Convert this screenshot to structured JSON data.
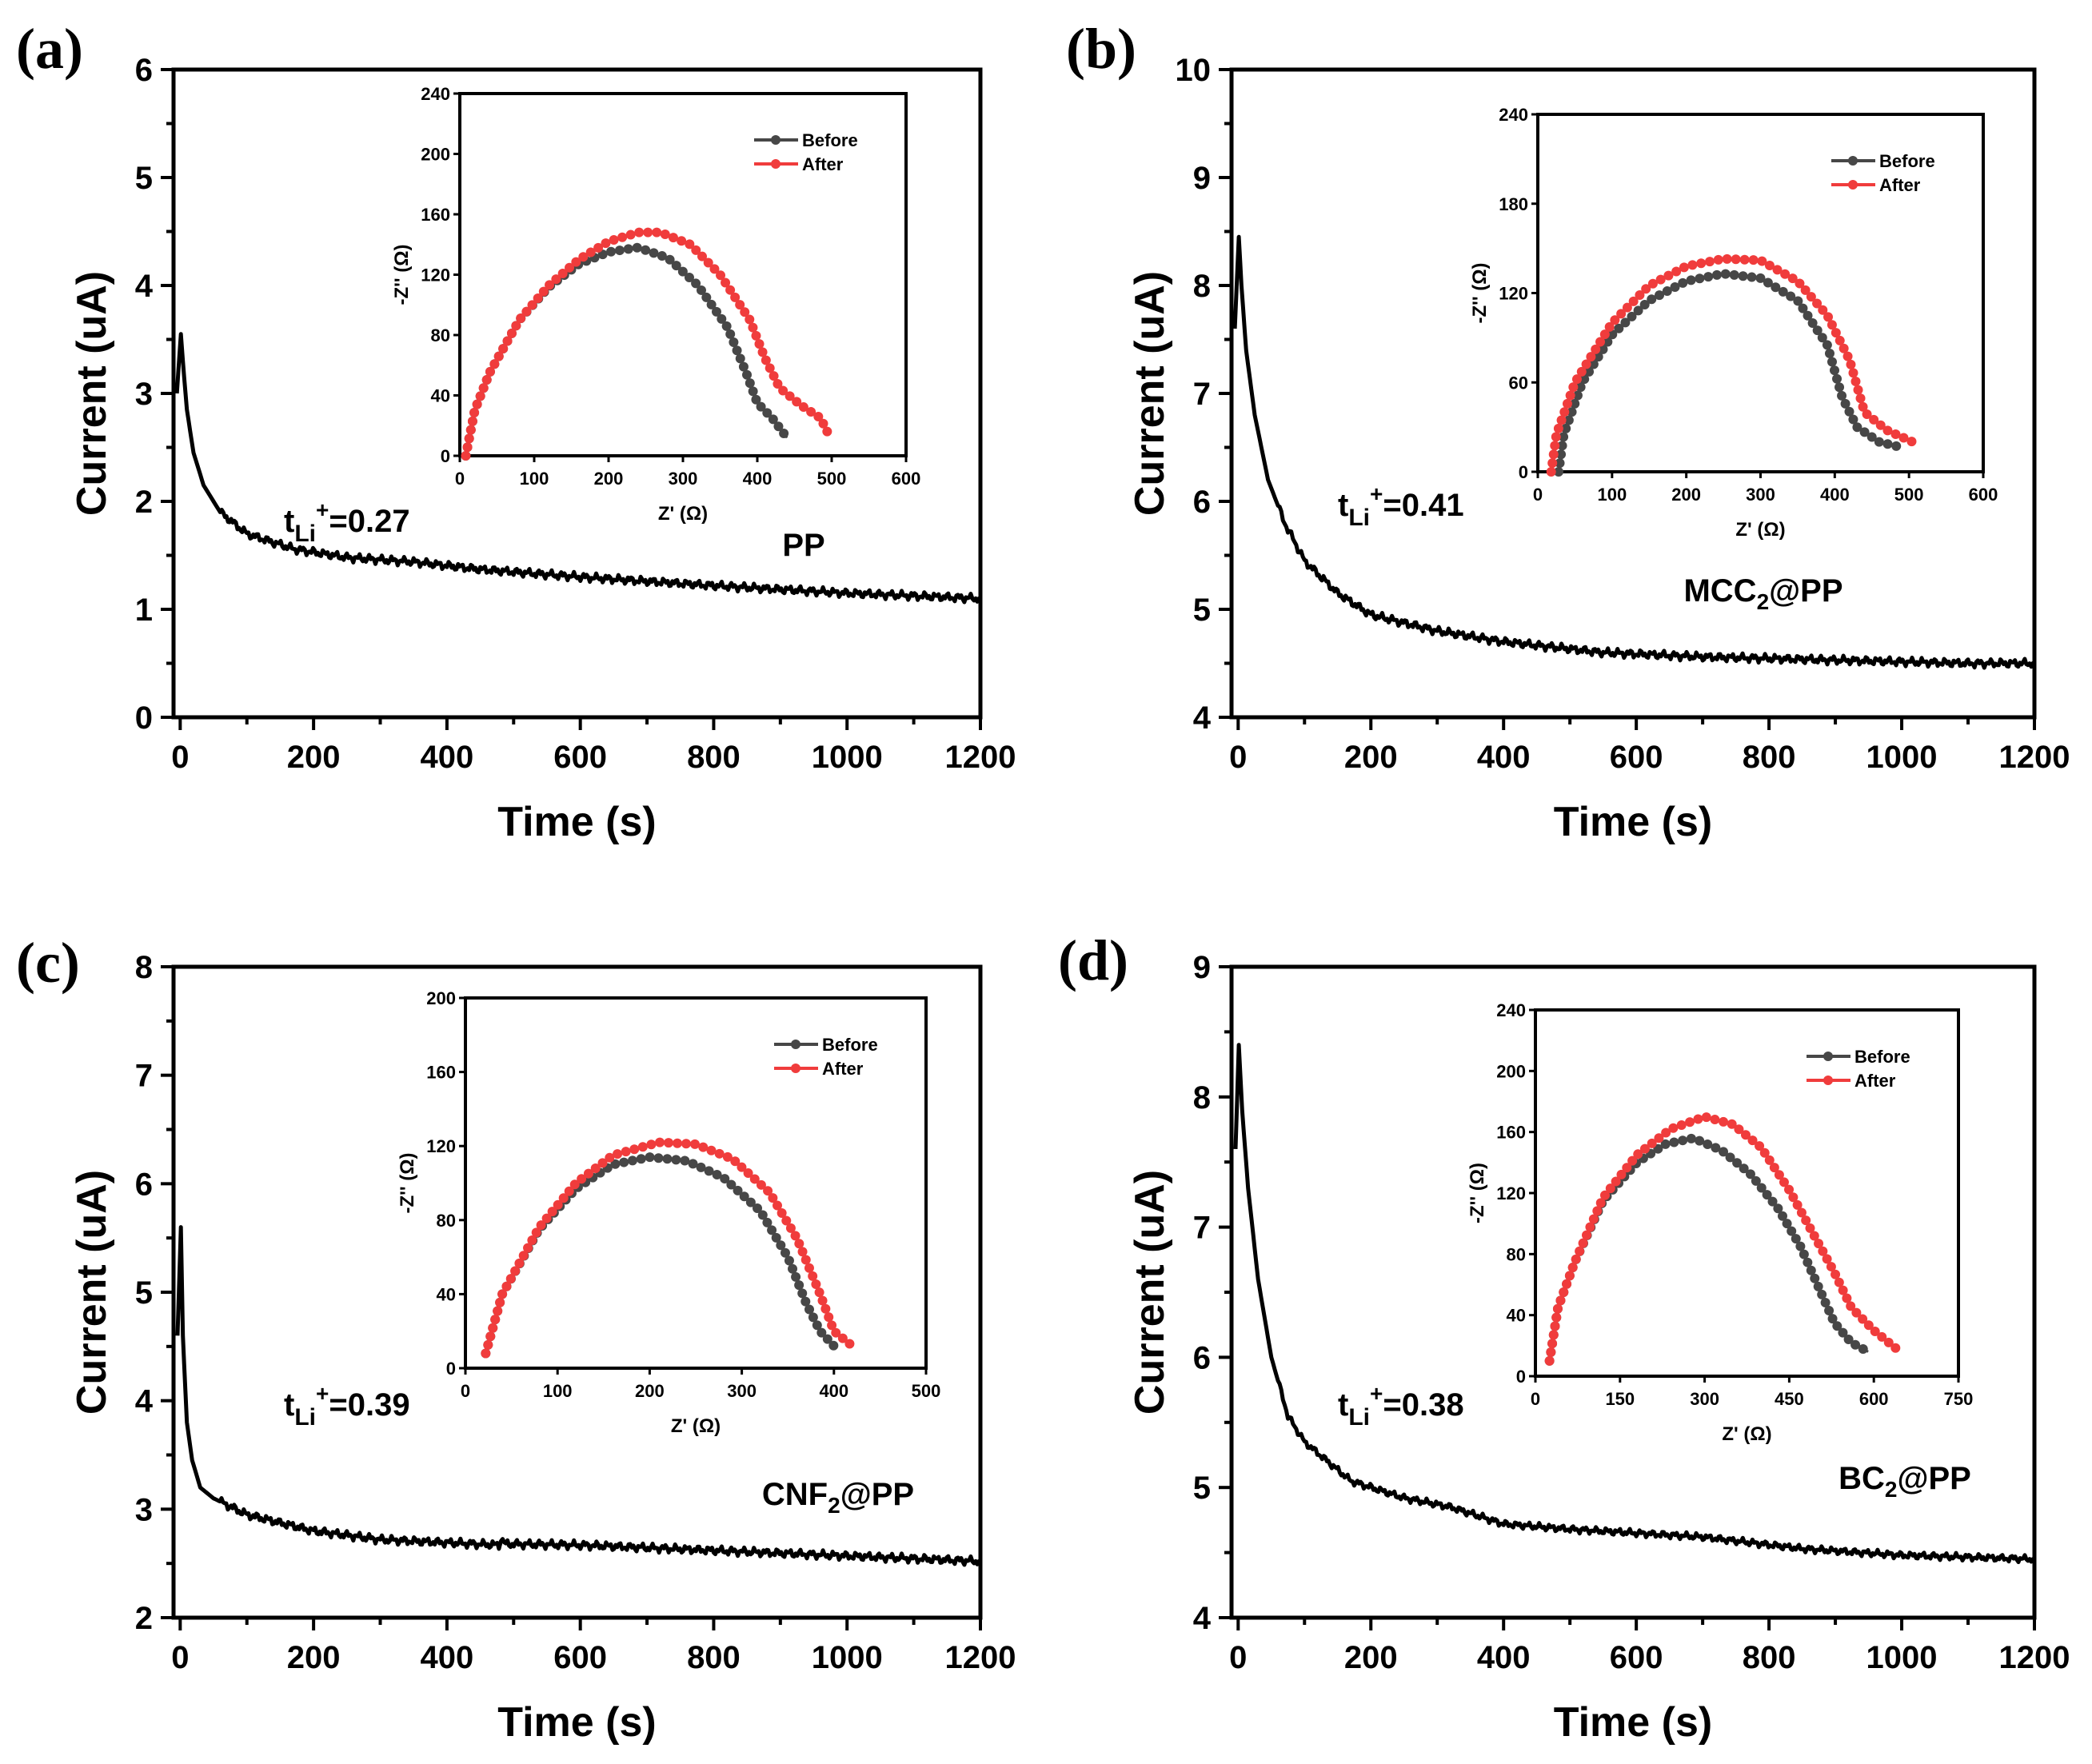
{
  "chart_data": [
    {
      "type": "line",
      "panel_label": "(a)",
      "xlabel": "Time (s)",
      "ylabel": "Current (uA)",
      "xlim": [
        -10,
        1200
      ],
      "ylim": [
        0,
        6
      ],
      "xticks": [
        0,
        200,
        400,
        600,
        800,
        1000,
        1200
      ],
      "yticks": [
        0,
        1,
        2,
        3,
        4,
        5,
        6
      ],
      "transference": {
        "t": "t",
        "sub": "Li",
        "sup": "+",
        "value": "=0.27"
      },
      "sample": {
        "base": "PP",
        "sub": "",
        "rest": ""
      },
      "series": [
        {
          "name": "current",
          "color": "#000000",
          "points": [
            [
              -5,
              3.0
            ],
            [
              1,
              3.55
            ],
            [
              4,
              3.3
            ],
            [
              10,
              2.85
            ],
            [
              20,
              2.45
            ],
            [
              35,
              2.15
            ],
            [
              60,
              1.9
            ],
            [
              100,
              1.7
            ],
            [
              170,
              1.56
            ],
            [
              250,
              1.48
            ],
            [
              350,
              1.44
            ],
            [
              450,
              1.37
            ],
            [
              600,
              1.3
            ],
            [
              700,
              1.26
            ],
            [
              800,
              1.22
            ],
            [
              1000,
              1.15
            ],
            [
              1200,
              1.1
            ]
          ]
        }
      ],
      "inset": {
        "type": "scatter-line",
        "xlabel": "Z' (Ω)",
        "ylabel": "-Z'' (Ω)",
        "xlim": [
          0,
          600
        ],
        "ylim": [
          0,
          240
        ],
        "xticks": [
          0,
          100,
          200,
          300,
          400,
          500,
          600
        ],
        "yticks": [
          0,
          40,
          80,
          120,
          160,
          200,
          240
        ],
        "legend_position": "top-right",
        "series": [
          {
            "name": "Before",
            "color": "#474747",
            "points": [
              [
                8,
                0
              ],
              [
                20,
                30
              ],
              [
                40,
                55
              ],
              [
                80,
                90
              ],
              [
                120,
                112
              ],
              [
                160,
                127
              ],
              [
                200,
                135
              ],
              [
                240,
                138
              ],
              [
                280,
                131
              ],
              [
                320,
                113
              ],
              [
                360,
                85
              ],
              [
                385,
                55
              ],
              [
                400,
                35
              ],
              [
                420,
                25
              ],
              [
                440,
                12
              ]
            ]
          },
          {
            "name": "After",
            "color": "#f03c3c",
            "points": [
              [
                8,
                0
              ],
              [
                20,
                30
              ],
              [
                40,
                55
              ],
              [
                80,
                90
              ],
              [
                120,
                113
              ],
              [
                160,
                130
              ],
              [
                200,
                142
              ],
              [
                240,
                148
              ],
              [
                270,
                148
              ],
              [
                310,
                140
              ],
              [
                350,
                120
              ],
              [
                390,
                90
              ],
              [
                410,
                65
              ],
              [
                430,
                45
              ],
              [
                460,
                33
              ],
              [
                485,
                25
              ],
              [
                495,
                15
              ]
            ]
          }
        ]
      }
    },
    {
      "type": "line",
      "panel_label": "(b)",
      "xlabel": "Time (s)",
      "ylabel": "Current (uA)",
      "xlim": [
        -10,
        1200
      ],
      "ylim": [
        4,
        10
      ],
      "xticks": [
        0,
        200,
        400,
        600,
        800,
        1000,
        1200
      ],
      "yticks": [
        4,
        5,
        6,
        7,
        8,
        9,
        10
      ],
      "transference": {
        "t": "t",
        "sub": "Li",
        "sup": "+",
        "value": "=0.41"
      },
      "sample": {
        "base": "MCC",
        "sub": "2",
        "rest": "@PP"
      },
      "series": [
        {
          "name": "current",
          "color": "#000000",
          "points": [
            [
              -5,
              7.6
            ],
            [
              1,
              8.45
            ],
            [
              5,
              8.0
            ],
            [
              12,
              7.4
            ],
            [
              25,
              6.8
            ],
            [
              45,
              6.2
            ],
            [
              70,
              5.8
            ],
            [
              100,
              5.45
            ],
            [
              150,
              5.15
            ],
            [
              200,
              4.95
            ],
            [
              300,
              4.8
            ],
            [
              400,
              4.7
            ],
            [
              550,
              4.6
            ],
            [
              700,
              4.56
            ],
            [
              900,
              4.53
            ],
            [
              1100,
              4.5
            ],
            [
              1200,
              4.5
            ]
          ]
        }
      ],
      "inset": {
        "type": "scatter-line",
        "xlabel": "Z' (Ω)",
        "ylabel": "-Z'' (Ω)",
        "xlim": [
          0,
          600
        ],
        "ylim": [
          0,
          240
        ],
        "xticks": [
          0,
          100,
          200,
          300,
          400,
          500,
          600
        ],
        "yticks": [
          0,
          60,
          120,
          180,
          240
        ],
        "legend_position": "top-right",
        "series": [
          {
            "name": "Before",
            "color": "#474747",
            "points": [
              [
                28,
                0
              ],
              [
                35,
                25
              ],
              [
                60,
                60
              ],
              [
                100,
                92
              ],
              [
                150,
                115
              ],
              [
                200,
                128
              ],
              [
                250,
                133
              ],
              [
                300,
                130
              ],
              [
                350,
                115
              ],
              [
                390,
                85
              ],
              [
                410,
                50
              ],
              [
                430,
                30
              ],
              [
                460,
                20
              ],
              [
                485,
                17
              ]
            ]
          },
          {
            "name": "After",
            "color": "#f03c3c",
            "points": [
              [
                18,
                0
              ],
              [
                25,
                25
              ],
              [
                50,
                60
              ],
              [
                100,
                100
              ],
              [
                150,
                125
              ],
              [
                200,
                138
              ],
              [
                250,
                143
              ],
              [
                300,
                142
              ],
              [
                350,
                128
              ],
              [
                390,
                105
              ],
              [
                420,
                75
              ],
              [
                440,
                40
              ],
              [
                470,
                28
              ],
              [
                505,
                20
              ]
            ]
          }
        ]
      }
    },
    {
      "type": "line",
      "panel_label": "(c)",
      "xlabel": "Time (s)",
      "ylabel": "Current (uA)",
      "xlim": [
        -10,
        1200
      ],
      "ylim": [
        2,
        8
      ],
      "xticks": [
        0,
        200,
        400,
        600,
        800,
        1000,
        1200
      ],
      "yticks": [
        2,
        3,
        4,
        5,
        6,
        7,
        8
      ],
      "transference": {
        "t": "t",
        "sub": "Li",
        "sup": "+",
        "value": "=0.39"
      },
      "sample": {
        "base": "CNF",
        "sub": "2",
        "rest": "@PP"
      },
      "series": [
        {
          "name": "current",
          "color": "#000000",
          "points": [
            [
              -4,
              4.6
            ],
            [
              1,
              5.6
            ],
            [
              4,
              4.6
            ],
            [
              10,
              3.8
            ],
            [
              18,
              3.45
            ],
            [
              30,
              3.2
            ],
            [
              50,
              3.1
            ],
            [
              100,
              2.95
            ],
            [
              200,
              2.8
            ],
            [
              300,
              2.72
            ],
            [
              478,
              2.67
            ],
            [
              481,
              2.74
            ],
            [
              486,
              2.68
            ],
            [
              600,
              2.67
            ],
            [
              800,
              2.62
            ],
            [
              1000,
              2.57
            ],
            [
              1200,
              2.52
            ]
          ]
        }
      ],
      "inset": {
        "type": "scatter-line",
        "xlabel": "Z' (Ω)",
        "ylabel": "-Z'' (Ω)",
        "xlim": [
          0,
          500
        ],
        "ylim": [
          0,
          200
        ],
        "xticks": [
          0,
          100,
          200,
          300,
          400,
          500
        ],
        "yticks": [
          0,
          40,
          80,
          120,
          160,
          200
        ],
        "legend_position": "top-right",
        "series": [
          {
            "name": "Before",
            "color": "#474747",
            "points": [
              [
                22,
                8
              ],
              [
                40,
                40
              ],
              [
                80,
                75
              ],
              [
                120,
                97
              ],
              [
                160,
                110
              ],
              [
                200,
                114
              ],
              [
                240,
                112
              ],
              [
                280,
                103
              ],
              [
                320,
                85
              ],
              [
                350,
                60
              ],
              [
                370,
                35
              ],
              [
                385,
                20
              ],
              [
                400,
                12
              ]
            ]
          },
          {
            "name": "After",
            "color": "#f03c3c",
            "points": [
              [
                22,
                8
              ],
              [
                40,
                40
              ],
              [
                80,
                76
              ],
              [
                120,
                100
              ],
              [
                160,
                115
              ],
              [
                210,
                122
              ],
              [
                250,
                121
              ],
              [
                290,
                113
              ],
              [
                330,
                95
              ],
              [
                360,
                70
              ],
              [
                385,
                40
              ],
              [
                400,
                20
              ],
              [
                420,
                12
              ]
            ]
          }
        ]
      }
    },
    {
      "type": "line",
      "panel_label": "(d)",
      "xlabel": "Time (s)",
      "ylabel": "Current (uA)",
      "xlim": [
        -10,
        1200
      ],
      "ylim": [
        4,
        9
      ],
      "xticks": [
        0,
        200,
        400,
        600,
        800,
        1000,
        1200
      ],
      "yticks": [
        4,
        5,
        6,
        7,
        8,
        9
      ],
      "transference": {
        "t": "t",
        "sub": "Li",
        "sup": "+",
        "value": "=0.38"
      },
      "sample": {
        "base": "BC",
        "sub": "2",
        "rest": "@PP"
      },
      "series": [
        {
          "name": "current",
          "color": "#000000",
          "points": [
            [
              -4,
              7.6
            ],
            [
              1,
              8.4
            ],
            [
              6,
              7.9
            ],
            [
              15,
              7.3
            ],
            [
              30,
              6.6
            ],
            [
              50,
              6.0
            ],
            [
              75,
              5.55
            ],
            [
              100,
              5.35
            ],
            [
              170,
              5.05
            ],
            [
              250,
              4.92
            ],
            [
              320,
              4.85
            ],
            [
              400,
              4.72
            ],
            [
              500,
              4.68
            ],
            [
              600,
              4.65
            ],
            [
              700,
              4.62
            ],
            [
              850,
              4.53
            ],
            [
              1000,
              4.48
            ],
            [
              1200,
              4.45
            ]
          ]
        }
      ],
      "inset": {
        "type": "scatter-line",
        "xlabel": "Z' (Ω)",
        "ylabel": "-Z'' (Ω)",
        "xlim": [
          0,
          750
        ],
        "ylim": [
          0,
          240
        ],
        "xticks": [
          0,
          150,
          300,
          450,
          600,
          750
        ],
        "yticks": [
          0,
          40,
          80,
          120,
          160,
          200,
          240
        ],
        "legend_position": "top-right",
        "series": [
          {
            "name": "Before",
            "color": "#474747",
            "points": [
              [
                25,
                10
              ],
              [
                40,
                45
              ],
              [
                70,
                75
              ],
              [
                120,
                115
              ],
              [
                180,
                140
              ],
              [
                230,
                152
              ],
              [
                280,
                156
              ],
              [
                330,
                148
              ],
              [
                380,
                133
              ],
              [
                430,
                110
              ],
              [
                470,
                85
              ],
              [
                500,
                60
              ],
              [
                530,
                35
              ],
              [
                560,
                22
              ],
              [
                590,
                16
              ]
            ]
          },
          {
            "name": "After",
            "color": "#f03c3c",
            "points": [
              [
                25,
                10
              ],
              [
                40,
                45
              ],
              [
                70,
                75
              ],
              [
                120,
                117
              ],
              [
                180,
                145
              ],
              [
                240,
                162
              ],
              [
                300,
                170
              ],
              [
                350,
                165
              ],
              [
                400,
                150
              ],
              [
                450,
                122
              ],
              [
                490,
                95
              ],
              [
                530,
                68
              ],
              [
                560,
                45
              ],
              [
                600,
                30
              ],
              [
                640,
                18
              ]
            ]
          }
        ]
      }
    }
  ]
}
